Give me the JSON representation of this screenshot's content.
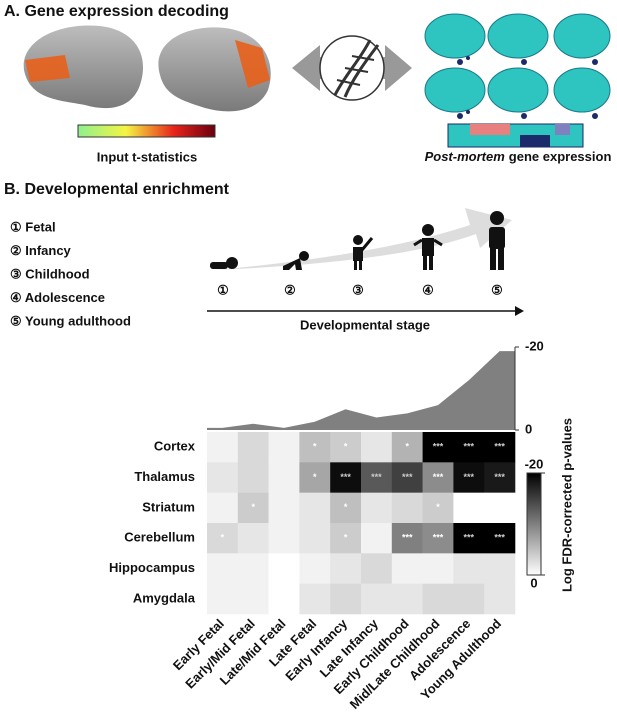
{
  "panel_a": {
    "title": "A. Gene expression decoding",
    "input_label": "Input t-statistics",
    "output_label_italic": "Post-mortem",
    "output_label": "gene expression"
  },
  "panel_b": {
    "title": "B. Developmental enrichment",
    "stages": [
      "① Fetal",
      "② Infancy",
      "③ Childhood",
      "④ Adolescence",
      "⑤ Young adulthood"
    ],
    "markers": [
      "①",
      "②",
      "③",
      "④",
      "⑤"
    ],
    "axis_label": "Developmental stage"
  },
  "chart_data": {
    "type": "heatmap",
    "rows": [
      "Cortex",
      "Thalamus",
      "Striatum",
      "Cerebellum",
      "Hippocampus",
      "Amygdala"
    ],
    "columns": [
      "Early Fetal",
      "Early/Mid Fetal",
      "Late/Mid Fetal",
      "Late Fetal",
      "Early Infancy",
      "Late Infancy",
      "Early Childhood",
      "Mid/Late Childhood",
      "Adolescence",
      "Young Adulthood"
    ],
    "values": [
      [
        -1,
        -3,
        -1,
        -5,
        -4,
        -2,
        -6,
        -20,
        -20,
        -20
      ],
      [
        -2,
        -3,
        -1,
        -7,
        -19,
        -13,
        -15,
        -9,
        -19,
        -18
      ],
      [
        -1,
        -4,
        -1,
        -2,
        -5,
        -2,
        -3,
        -4,
        0,
        0
      ],
      [
        -3,
        -2,
        -1,
        -2,
        -4,
        -1,
        -10,
        -9,
        -20,
        -20
      ],
      [
        -1,
        -1,
        0,
        -1,
        -2,
        -3,
        -1,
        -1,
        -2,
        -2
      ],
      [
        -1,
        -1,
        0,
        -2,
        -3,
        -2,
        -2,
        -3,
        -3,
        -2
      ]
    ],
    "value_labels": [
      [
        null,
        null,
        null,
        "*",
        "*",
        null,
        "*",
        "***",
        "***",
        "***"
      ],
      [
        null,
        null,
        null,
        "*",
        "***",
        "***",
        "***",
        "***",
        "***",
        "***"
      ],
      [
        null,
        "*",
        null,
        null,
        "*",
        null,
        null,
        "*",
        null,
        null
      ],
      [
        "*",
        null,
        null,
        null,
        "*",
        null,
        "***",
        "***",
        "***",
        "***"
      ],
      [
        null,
        null,
        null,
        null,
        null,
        null,
        null,
        null,
        null,
        null
      ],
      [
        null,
        null,
        null,
        null,
        null,
        null,
        null,
        null,
        null,
        null
      ]
    ],
    "color_scale": {
      "label": "Log FDR-corrected p-values",
      "lim": [
        0,
        -20
      ],
      "ticks": [
        -20,
        0
      ]
    },
    "density": {
      "values": [
        -0.5,
        -1.5,
        -0.5,
        -2,
        -5,
        -3,
        -4,
        -6,
        -12,
        -19
      ],
      "ylim": [
        0,
        -20
      ],
      "yticks": [
        -20,
        0
      ],
      "color": "#808080"
    }
  }
}
